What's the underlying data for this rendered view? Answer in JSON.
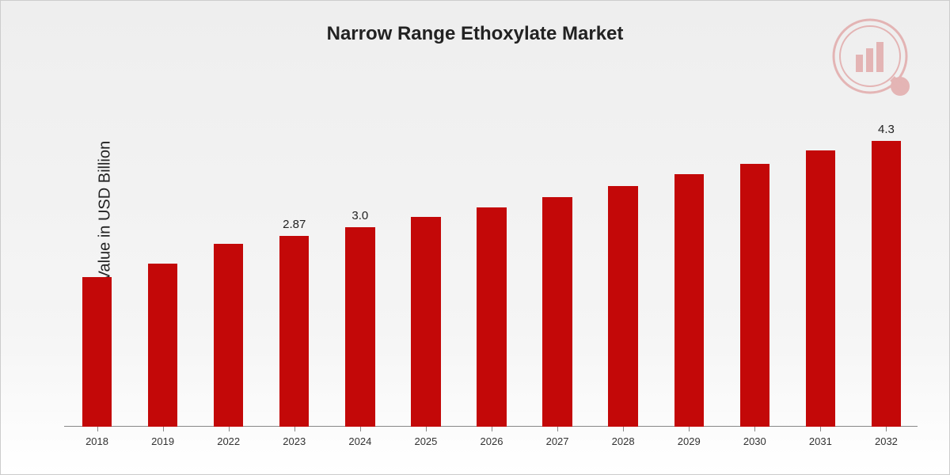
{
  "chart": {
    "type": "bar",
    "title": "Narrow Range Ethoxylate Market",
    "title_fontsize": 24,
    "ylabel": "Market Value in USD Billion",
    "ylabel_fontsize": 20,
    "background_gradient_top": "#eeeeee",
    "background_gradient_bottom": "#ffffff",
    "bar_color": "#c30808",
    "axis_color": "#888888",
    "text_color": "#222222",
    "xlabel_fontsize": 13,
    "bar_label_fontsize": 15,
    "ylim": [
      0,
      5.0
    ],
    "bar_width_ratio": 0.45,
    "categories": [
      "2018",
      "2019",
      "2022",
      "2023",
      "2024",
      "2025",
      "2026",
      "2027",
      "2028",
      "2029",
      "2030",
      "2031",
      "2032"
    ],
    "values": [
      2.25,
      2.45,
      2.75,
      2.87,
      3.0,
      3.15,
      3.3,
      3.45,
      3.62,
      3.8,
      3.95,
      4.15,
      4.3
    ],
    "labels_shown": {
      "3": "2.87",
      "4": "3.0",
      "12": "4.3"
    },
    "watermark_color": "#c30808"
  }
}
